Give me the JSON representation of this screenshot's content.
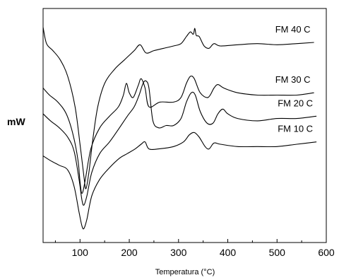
{
  "chart_data": {
    "type": "line",
    "title": "",
    "xlabel": "Temperatura (°C)",
    "ylabel": "mW",
    "xlim": [
      25,
      600
    ],
    "ylim": [
      0,
      100
    ],
    "x_ticks": [
      100,
      200,
      300,
      400,
      500,
      600
    ],
    "y_ticks_shown": false,
    "grid": false,
    "legend": "none",
    "line_color": "#000000",
    "series": [
      {
        "name": "FM 40 C",
        "points": [
          [
            25,
            92
          ],
          [
            32,
            85
          ],
          [
            45,
            82
          ],
          [
            60,
            78
          ],
          [
            75,
            71
          ],
          [
            90,
            58
          ],
          [
            100,
            42
          ],
          [
            108,
            28
          ],
          [
            112,
            23
          ],
          [
            118,
            30
          ],
          [
            126,
            44
          ],
          [
            136,
            58
          ],
          [
            150,
            68
          ],
          [
            170,
            74
          ],
          [
            190,
            78
          ],
          [
            210,
            82
          ],
          [
            222,
            84.5
          ],
          [
            234,
            81
          ],
          [
            250,
            82
          ],
          [
            270,
            83
          ],
          [
            290,
            84
          ],
          [
            305,
            85
          ],
          [
            316,
            88
          ],
          [
            324,
            90
          ],
          [
            330,
            89
          ],
          [
            333,
            91.5
          ],
          [
            336,
            88.5
          ],
          [
            342,
            88
          ],
          [
            352,
            84
          ],
          [
            362,
            83
          ],
          [
            372,
            85
          ],
          [
            385,
            84
          ],
          [
            420,
            84.5
          ],
          [
            460,
            85
          ],
          [
            500,
            84.5
          ],
          [
            540,
            85
          ],
          [
            575,
            85.5
          ]
        ]
      },
      {
        "name": "FM 30 C",
        "points": [
          [
            25,
            66
          ],
          [
            38,
            63
          ],
          [
            55,
            60
          ],
          [
            72,
            55
          ],
          [
            86,
            46
          ],
          [
            96,
            35
          ],
          [
            100,
            26
          ],
          [
            104,
            21
          ],
          [
            110,
            26
          ],
          [
            122,
            40
          ],
          [
            140,
            49
          ],
          [
            160,
            54
          ],
          [
            178,
            58
          ],
          [
            188,
            63
          ],
          [
            194,
            68
          ],
          [
            200,
            64
          ],
          [
            208,
            62
          ],
          [
            218,
            67
          ],
          [
            224,
            70
          ],
          [
            232,
            66
          ],
          [
            240,
            58
          ],
          [
            262,
            60
          ],
          [
            290,
            60
          ],
          [
            305,
            62
          ],
          [
            316,
            68
          ],
          [
            324,
            71
          ],
          [
            332,
            70
          ],
          [
            344,
            64
          ],
          [
            360,
            62
          ],
          [
            372,
            66
          ],
          [
            380,
            67.5
          ],
          [
            392,
            66
          ],
          [
            420,
            64
          ],
          [
            460,
            63
          ],
          [
            500,
            63
          ],
          [
            540,
            63
          ],
          [
            575,
            64
          ]
        ]
      },
      {
        "name": "FM 20 C",
        "points": [
          [
            25,
            55
          ],
          [
            40,
            52
          ],
          [
            58,
            49
          ],
          [
            75,
            45
          ],
          [
            88,
            39
          ],
          [
            98,
            27
          ],
          [
            104,
            18
          ],
          [
            108,
            16
          ],
          [
            114,
            20
          ],
          [
            124,
            30
          ],
          [
            140,
            38
          ],
          [
            160,
            43
          ],
          [
            180,
            49
          ],
          [
            196,
            54
          ],
          [
            210,
            58
          ],
          [
            220,
            63
          ],
          [
            228,
            68
          ],
          [
            234,
            69
          ],
          [
            240,
            66
          ],
          [
            248,
            52
          ],
          [
            260,
            49
          ],
          [
            275,
            50
          ],
          [
            290,
            50
          ],
          [
            305,
            53
          ],
          [
            316,
            60
          ],
          [
            326,
            64
          ],
          [
            334,
            63
          ],
          [
            344,
            56
          ],
          [
            358,
            51
          ],
          [
            370,
            51
          ],
          [
            380,
            55
          ],
          [
            390,
            57
          ],
          [
            400,
            55
          ],
          [
            420,
            53
          ],
          [
            460,
            52
          ],
          [
            500,
            53
          ],
          [
            540,
            53
          ],
          [
            580,
            54
          ]
        ]
      },
      {
        "name": "FM 10 C",
        "points": [
          [
            25,
            37
          ],
          [
            40,
            35
          ],
          [
            58,
            33
          ],
          [
            75,
            31
          ],
          [
            88,
            24
          ],
          [
            98,
            13
          ],
          [
            104,
            7
          ],
          [
            108,
            6
          ],
          [
            114,
            10
          ],
          [
            124,
            20
          ],
          [
            140,
            27
          ],
          [
            160,
            32
          ],
          [
            180,
            36
          ],
          [
            196,
            38
          ],
          [
            212,
            40
          ],
          [
            224,
            42
          ],
          [
            232,
            43
          ],
          [
            240,
            40
          ],
          [
            260,
            40
          ],
          [
            290,
            41
          ],
          [
            310,
            43
          ],
          [
            322,
            46
          ],
          [
            332,
            47
          ],
          [
            342,
            45
          ],
          [
            354,
            41
          ],
          [
            362,
            40
          ],
          [
            372,
            42.5
          ],
          [
            385,
            42
          ],
          [
            420,
            41
          ],
          [
            460,
            41
          ],
          [
            500,
            41
          ],
          [
            540,
            42
          ],
          [
            580,
            43
          ]
        ]
      }
    ]
  }
}
